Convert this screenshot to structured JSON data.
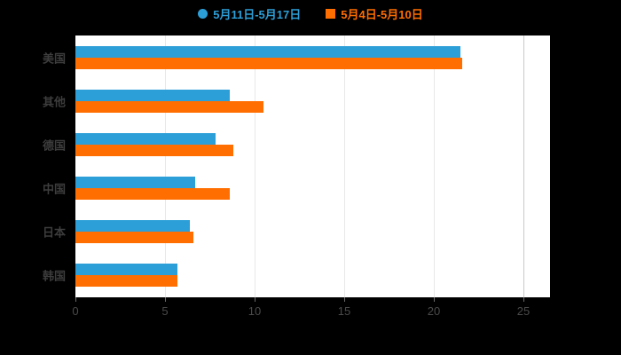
{
  "legend": {
    "series1_label": "5月11日-5月17日",
    "series2_label": "5月4日-5月10日"
  },
  "colors": {
    "series1": "#2D9FD8",
    "series2": "#FF6E00",
    "background": "#000000",
    "plot_background": "#FFFFFF",
    "axis_text": "#4A4A4A",
    "category_text": "#3D3D3D",
    "gridline": "#E8E8E8"
  },
  "chart_data": {
    "type": "bar",
    "orientation": "horizontal",
    "title": "",
    "xlabel": "",
    "ylabel": "",
    "categories": [
      "美国",
      "其他",
      "德国",
      "中国",
      "日本",
      "韩国"
    ],
    "series": [
      {
        "name": "5月11日-5月17日",
        "color": "#2D9FD8",
        "values": [
          21.5,
          8.6,
          7.8,
          6.7,
          6.4,
          5.7
        ]
      },
      {
        "name": "5月4日-5月10日",
        "color": "#FF6E00",
        "values": [
          21.6,
          10.5,
          8.8,
          8.6,
          6.6,
          5.7
        ]
      }
    ],
    "xlim": [
      0,
      25
    ],
    "xticks": [
      0,
      5,
      10,
      15,
      20,
      25
    ],
    "grid": true,
    "legend_position": "top"
  }
}
